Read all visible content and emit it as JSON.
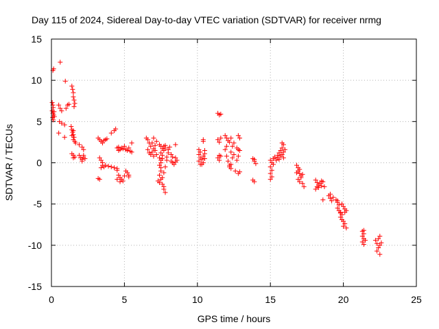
{
  "chart_data": {
    "type": "scatter",
    "title": "Day 115 of 2024, Sidereal Day-to-day VTEC variation (SDTVAR) for receiver nrmg",
    "xlabel": "GPS time / hours",
    "ylabel": "SDTVAR / TECUs",
    "xlim": [
      0,
      25
    ],
    "ylim": [
      -15,
      15
    ],
    "xticks": [
      0,
      5,
      10,
      15,
      20,
      25
    ],
    "yticks": [
      -15,
      -10,
      -5,
      0,
      5,
      10,
      15
    ],
    "xtick_labels": [
      "0",
      "5",
      "10",
      "15",
      "20",
      "25"
    ],
    "ytick_labels": [
      "-15",
      "-10",
      "-5",
      "0",
      "5",
      "10",
      "15"
    ],
    "grid": true,
    "marker": "plus",
    "series": [
      {
        "name": "SDTVAR",
        "color": "#ff0000",
        "points": [
          [
            0.1,
            11.2
          ],
          [
            0.15,
            11.4
          ],
          [
            0.05,
            7.3
          ],
          [
            0.1,
            7.0
          ],
          [
            0.12,
            6.7
          ],
          [
            0.05,
            6.3
          ],
          [
            0.1,
            6.0
          ],
          [
            0.15,
            5.8
          ],
          [
            0.08,
            5.5
          ],
          [
            0.12,
            5.2
          ],
          [
            0.2,
            5.6
          ],
          [
            0.18,
            6.2
          ],
          [
            0.6,
            12.2
          ],
          [
            0.5,
            7.0
          ],
          [
            0.6,
            6.6
          ],
          [
            0.7,
            6.3
          ],
          [
            0.55,
            5.0
          ],
          [
            0.7,
            4.8
          ],
          [
            0.9,
            4.6
          ],
          [
            0.5,
            3.6
          ],
          [
            0.9,
            3.1
          ],
          [
            0.95,
            9.9
          ],
          [
            1.2,
            7.1
          ],
          [
            1.0,
            6.6
          ],
          [
            1.1,
            7.0
          ],
          [
            1.4,
            9.3
          ],
          [
            1.45,
            8.9
          ],
          [
            1.5,
            8.5
          ],
          [
            1.5,
            8.0
          ],
          [
            1.55,
            7.6
          ],
          [
            1.6,
            7.2
          ],
          [
            1.55,
            6.8
          ],
          [
            1.35,
            4.4
          ],
          [
            1.4,
            4.0
          ],
          [
            1.45,
            3.7
          ],
          [
            1.5,
            3.4
          ],
          [
            1.55,
            3.1
          ],
          [
            1.5,
            2.8
          ],
          [
            1.6,
            2.6
          ],
          [
            1.65,
            2.4
          ],
          [
            1.5,
            3.9
          ],
          [
            1.4,
            3.3
          ],
          [
            1.4,
            1.1
          ],
          [
            1.5,
            0.9
          ],
          [
            1.6,
            0.7
          ],
          [
            1.5,
            0.6
          ],
          [
            1.9,
            2.2
          ],
          [
            2.1,
            1.9
          ],
          [
            2.2,
            1.6
          ],
          [
            1.9,
            0.9
          ],
          [
            2.0,
            0.6
          ],
          [
            2.1,
            0.4
          ],
          [
            2.2,
            0.7
          ],
          [
            2.3,
            0.5
          ],
          [
            2.1,
            0.2
          ],
          [
            2.2,
            0.9
          ],
          [
            3.2,
            3.0
          ],
          [
            3.3,
            2.8
          ],
          [
            3.4,
            2.6
          ],
          [
            3.5,
            2.4
          ],
          [
            3.6,
            2.7
          ],
          [
            3.3,
            0.6
          ],
          [
            3.4,
            0.3
          ],
          [
            3.5,
            0.0
          ],
          [
            3.5,
            -0.3
          ],
          [
            3.6,
            -0.5
          ],
          [
            3.7,
            -0.3
          ],
          [
            3.4,
            -0.6
          ],
          [
            3.2,
            -1.9
          ],
          [
            3.3,
            -2.0
          ],
          [
            3.9,
            -0.4
          ],
          [
            4.1,
            -0.5
          ],
          [
            4.3,
            -0.6
          ],
          [
            4.5,
            -0.7
          ],
          [
            4.5,
            -0.9
          ],
          [
            3.7,
            2.8
          ],
          [
            3.8,
            2.9
          ],
          [
            4.1,
            3.6
          ],
          [
            4.3,
            3.9
          ],
          [
            4.4,
            4.1
          ],
          [
            4.5,
            1.8
          ],
          [
            4.6,
            1.9
          ],
          [
            4.7,
            1.6
          ],
          [
            4.8,
            1.8
          ],
          [
            4.9,
            1.7
          ],
          [
            4.6,
            1.5
          ],
          [
            5.0,
            2.0
          ],
          [
            5.1,
            1.6
          ],
          [
            5.2,
            1.5
          ],
          [
            5.3,
            1.8
          ],
          [
            4.6,
            -1.5
          ],
          [
            4.7,
            -1.8
          ],
          [
            4.8,
            -2.0
          ],
          [
            4.9,
            -2.2
          ],
          [
            4.5,
            -2.0
          ],
          [
            5.0,
            -1.6
          ],
          [
            4.7,
            -2.3
          ],
          [
            5.2,
            -1.2
          ],
          [
            5.3,
            -1.5
          ],
          [
            5.1,
            -1.0
          ],
          [
            5.3,
            -1.7
          ],
          [
            5.5,
            2.4
          ],
          [
            5.5,
            1.3
          ],
          [
            5.4,
            1.4
          ],
          [
            6.5,
            3.0
          ],
          [
            6.6,
            2.8
          ],
          [
            6.7,
            2.4
          ],
          [
            6.8,
            2.0
          ],
          [
            6.6,
            1.6
          ],
          [
            6.7,
            1.2
          ],
          [
            6.8,
            1.0
          ],
          [
            6.9,
            1.3
          ],
          [
            7.0,
            1.7
          ],
          [
            7.1,
            2.1
          ],
          [
            7.2,
            2.6
          ],
          [
            7.0,
            3.0
          ],
          [
            6.9,
            2.4
          ],
          [
            7.0,
            0.8
          ],
          [
            7.2,
            1.0
          ],
          [
            7.1,
            1.5
          ],
          [
            7.4,
            2.2
          ],
          [
            7.5,
            2.0
          ],
          [
            7.6,
            1.7
          ],
          [
            7.7,
            1.5
          ],
          [
            7.8,
            1.8
          ],
          [
            7.5,
            1.2
          ],
          [
            7.6,
            0.9
          ],
          [
            7.4,
            0.6
          ],
          [
            7.5,
            0.3
          ],
          [
            7.5,
            0.0
          ],
          [
            7.4,
            -0.3
          ],
          [
            7.5,
            -0.6
          ],
          [
            7.5,
            -1.0
          ],
          [
            7.4,
            -1.5
          ],
          [
            7.5,
            -2.0
          ],
          [
            7.4,
            -2.4
          ],
          [
            7.3,
            -2.2
          ],
          [
            7.6,
            -1.8
          ],
          [
            7.6,
            -2.6
          ],
          [
            7.7,
            -2.9
          ],
          [
            7.7,
            -3.2
          ],
          [
            7.8,
            -3.6
          ],
          [
            7.7,
            -1.2
          ],
          [
            7.8,
            -0.5
          ],
          [
            7.9,
            0.3
          ],
          [
            7.9,
            0.7
          ],
          [
            8.0,
            1.2
          ],
          [
            8.0,
            1.6
          ],
          [
            8.1,
            1.9
          ],
          [
            7.8,
            2.1
          ],
          [
            7.7,
            2.0
          ],
          [
            7.6,
            0.5
          ],
          [
            8.2,
            1.0
          ],
          [
            8.3,
            0.7
          ],
          [
            8.2,
            0.2
          ],
          [
            8.3,
            0.0
          ],
          [
            8.4,
            -0.2
          ],
          [
            8.5,
            2.2
          ],
          [
            8.5,
            0.1
          ],
          [
            8.6,
            0.3
          ],
          [
            8.5,
            0.6
          ],
          [
            10.1,
            1.6
          ],
          [
            10.2,
            1.3
          ],
          [
            10.1,
            1.0
          ],
          [
            10.2,
            0.6
          ],
          [
            10.1,
            0.2
          ],
          [
            10.3,
            -0.2
          ],
          [
            10.4,
            0.0
          ],
          [
            10.3,
            0.4
          ],
          [
            10.4,
            0.8
          ],
          [
            10.5,
            1.1
          ],
          [
            10.4,
            2.6
          ],
          [
            10.4,
            2.8
          ],
          [
            10.5,
            1.5
          ],
          [
            10.2,
            -0.2
          ],
          [
            10.5,
            0.5
          ],
          [
            11.4,
            6.0
          ],
          [
            11.5,
            5.8
          ],
          [
            11.6,
            5.9
          ],
          [
            11.4,
            2.8
          ],
          [
            11.5,
            2.5
          ],
          [
            11.6,
            3.0
          ],
          [
            11.5,
            0.9
          ],
          [
            11.4,
            0.6
          ],
          [
            11.5,
            0.3
          ],
          [
            11.6,
            0.8
          ],
          [
            11.9,
            3.3
          ],
          [
            12.0,
            3.0
          ],
          [
            12.1,
            2.7
          ],
          [
            12.2,
            2.5
          ],
          [
            12.3,
            3.0
          ],
          [
            12.0,
            2.0
          ],
          [
            11.9,
            1.6
          ],
          [
            12.0,
            0.8
          ],
          [
            12.1,
            0.2
          ],
          [
            12.2,
            -0.3
          ],
          [
            12.3,
            -0.7
          ],
          [
            12.2,
            -0.5
          ],
          [
            12.3,
            -0.2
          ],
          [
            12.4,
            0.6
          ],
          [
            12.3,
            1.3
          ],
          [
            12.4,
            2.0
          ],
          [
            12.5,
            2.4
          ],
          [
            12.5,
            1.0
          ],
          [
            12.8,
            3.3
          ],
          [
            12.9,
            3.0
          ],
          [
            12.7,
            1.8
          ],
          [
            12.8,
            1.6
          ],
          [
            12.9,
            1.5
          ],
          [
            12.8,
            0.8
          ],
          [
            12.7,
            0.3
          ],
          [
            12.6,
            -1.0
          ],
          [
            12.8,
            -1.3
          ],
          [
            12.9,
            -1.1
          ],
          [
            13.8,
            0.5
          ],
          [
            13.9,
            0.2
          ],
          [
            14.0,
            -0.1
          ],
          [
            13.9,
            0.4
          ],
          [
            13.8,
            -2.1
          ],
          [
            13.9,
            -2.3
          ],
          [
            15.0,
            0.3
          ],
          [
            15.1,
            0.0
          ],
          [
            15.0,
            -0.5
          ],
          [
            15.1,
            -0.9
          ],
          [
            15.0,
            -1.3
          ],
          [
            15.1,
            -1.7
          ],
          [
            15.0,
            -2.0
          ],
          [
            15.2,
            -0.2
          ],
          [
            15.2,
            0.5
          ],
          [
            15.3,
            0.7
          ],
          [
            15.4,
            0.3
          ],
          [
            15.5,
            0.6
          ],
          [
            15.5,
            0.9
          ],
          [
            15.6,
            1.2
          ],
          [
            15.7,
            1.5
          ],
          [
            15.8,
            1.8
          ],
          [
            15.9,
            2.2
          ],
          [
            15.8,
            1.0
          ],
          [
            15.9,
            1.3
          ],
          [
            15.7,
            0.8
          ],
          [
            15.8,
            2.4
          ],
          [
            16.0,
            1.6
          ],
          [
            15.9,
            0.6
          ],
          [
            15.6,
            0.4
          ],
          [
            16.8,
            -0.3
          ],
          [
            16.9,
            -0.6
          ],
          [
            17.0,
            -0.8
          ],
          [
            16.9,
            -1.0
          ],
          [
            17.0,
            -1.3
          ],
          [
            17.1,
            -1.6
          ],
          [
            16.9,
            -2.0
          ],
          [
            17.0,
            -2.3
          ],
          [
            17.1,
            -1.8
          ],
          [
            16.8,
            -1.2
          ],
          [
            17.2,
            -2.5
          ],
          [
            17.3,
            -2.9
          ],
          [
            17.2,
            -1.4
          ],
          [
            18.1,
            -2.1
          ],
          [
            18.2,
            -2.4
          ],
          [
            18.3,
            -2.7
          ],
          [
            18.4,
            -2.5
          ],
          [
            18.5,
            -2.8
          ],
          [
            18.6,
            -2.3
          ],
          [
            18.3,
            -3.0
          ],
          [
            18.1,
            -3.2
          ],
          [
            18.5,
            -2.2
          ],
          [
            18.7,
            -2.9
          ],
          [
            18.2,
            -2.9
          ],
          [
            18.6,
            -4.5
          ],
          [
            19.0,
            -4.0
          ],
          [
            19.1,
            -4.3
          ],
          [
            19.2,
            -4.6
          ],
          [
            19.3,
            -4.2
          ],
          [
            19.1,
            -3.8
          ],
          [
            19.5,
            -4.5
          ],
          [
            19.6,
            -4.8
          ],
          [
            19.7,
            -5.1
          ],
          [
            19.6,
            -5.5
          ],
          [
            19.7,
            -5.8
          ],
          [
            19.8,
            -6.1
          ],
          [
            19.9,
            -6.3
          ],
          [
            19.8,
            -6.6
          ],
          [
            19.9,
            -6.9
          ],
          [
            20.0,
            -7.1
          ],
          [
            20.1,
            -7.4
          ],
          [
            20.0,
            -7.7
          ],
          [
            20.1,
            -5.6
          ],
          [
            20.0,
            -5.3
          ],
          [
            20.1,
            -6.0
          ],
          [
            19.8,
            -6.0
          ],
          [
            19.6,
            -4.6
          ],
          [
            19.9,
            -5.0
          ],
          [
            20.2,
            -5.8
          ],
          [
            20.2,
            -7.9
          ],
          [
            21.3,
            -8.3
          ],
          [
            21.4,
            -8.6
          ],
          [
            21.3,
            -8.9
          ],
          [
            21.4,
            -9.2
          ],
          [
            21.3,
            -9.6
          ],
          [
            21.4,
            -9.9
          ],
          [
            21.5,
            -9.4
          ],
          [
            21.4,
            -8.2
          ],
          [
            22.2,
            -9.4
          ],
          [
            22.3,
            -9.8
          ],
          [
            22.4,
            -10.3
          ],
          [
            22.5,
            -10.0
          ],
          [
            22.3,
            -10.7
          ],
          [
            22.5,
            -11.1
          ],
          [
            22.6,
            -9.7
          ],
          [
            22.5,
            -8.9
          ],
          [
            22.4,
            -9.2
          ]
        ]
      }
    ]
  }
}
